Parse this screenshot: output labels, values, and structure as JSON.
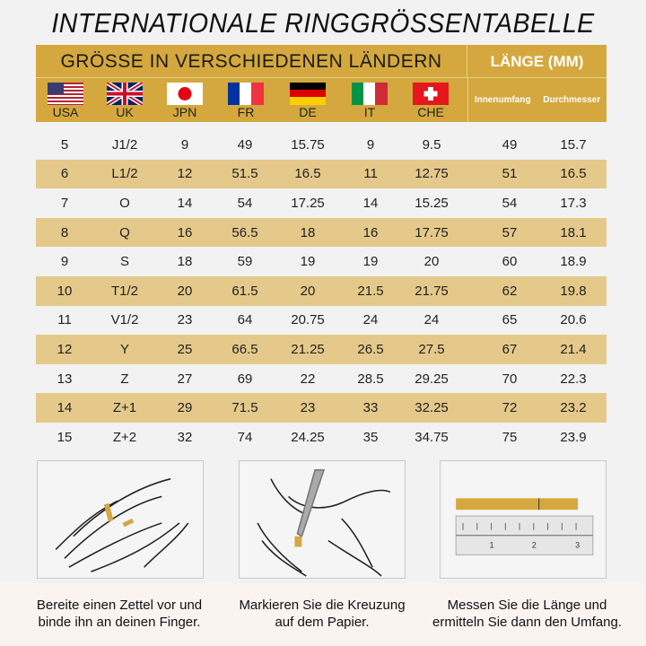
{
  "title": "INTERNATIONALE RINGGRÖSSENTABELLE",
  "header": {
    "sizes_label": "GRÖSSE IN VERSCHIEDENEN LÄNDERN",
    "length_label": "LÄNGE (MM)",
    "inner_label": "Innenumfang",
    "diameter_label": "Durchmesser",
    "countries": [
      {
        "code": "USA",
        "flag": "us-flag"
      },
      {
        "code": "UK",
        "flag": "uk-flag"
      },
      {
        "code": "JPN",
        "flag": "japan-flag"
      },
      {
        "code": "FR",
        "flag": "france-flag"
      },
      {
        "code": "DE",
        "flag": "germany-flag"
      },
      {
        "code": "IT",
        "flag": "italy-flag"
      },
      {
        "code": "CHE",
        "flag": "switzerland-flag"
      }
    ]
  },
  "rows": [
    [
      "5",
      "J1/2",
      "9",
      "49",
      "15.75",
      "9",
      "9.5",
      "49",
      "15.7"
    ],
    [
      "6",
      "L1/2",
      "12",
      "51.5",
      "16.5",
      "11",
      "12.75",
      "51",
      "16.5"
    ],
    [
      "7",
      "O",
      "14",
      "54",
      "17.25",
      "14",
      "15.25",
      "54",
      "17.3"
    ],
    [
      "8",
      "Q",
      "16",
      "56.5",
      "18",
      "16",
      "17.75",
      "57",
      "18.1"
    ],
    [
      "9",
      "S",
      "18",
      "59",
      "19",
      "19",
      "20",
      "60",
      "18.9"
    ],
    [
      "10",
      "T1/2",
      "20",
      "61.5",
      "20",
      "21.5",
      "21.75",
      "62",
      "19.8"
    ],
    [
      "11",
      "V1/2",
      "23",
      "64",
      "20.75",
      "24",
      "24",
      "65",
      "20.6"
    ],
    [
      "12",
      "Y",
      "25",
      "66.5",
      "21.25",
      "26.5",
      "27.5",
      "67",
      "21.4"
    ],
    [
      "13",
      "Z",
      "27",
      "69",
      "22",
      "28.5",
      "29.25",
      "70",
      "22.3"
    ],
    [
      "14",
      "Z+1",
      "29",
      "71.5",
      "23",
      "33",
      "32.25",
      "72",
      "23.2"
    ],
    [
      "15",
      "Z+2",
      "32",
      "74",
      "24.25",
      "35",
      "34.75",
      "75",
      "23.9"
    ]
  ],
  "colors": {
    "gold": "#d4a83e",
    "row_alt": "#e4c98a"
  },
  "steps": [
    {
      "line1": "Bereite einen Zettel vor und",
      "line2": "binde ihn an deinen Finger."
    },
    {
      "line1": "Markieren Sie die Kreuzung",
      "line2": "auf dem Papier."
    },
    {
      "line1": "Messen Sie die Länge und",
      "line2": "ermitteln Sie dann den Umfang."
    }
  ]
}
